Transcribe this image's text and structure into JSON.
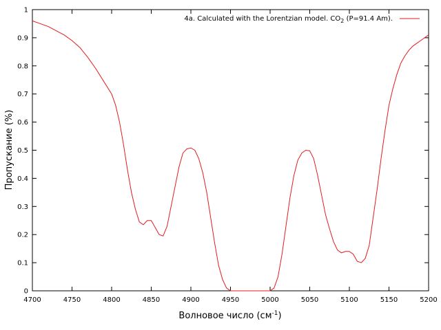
{
  "chart_data": {
    "type": "line",
    "title": "",
    "xlabel": "Волновое число (см",
    "xlabel_sup": "-1",
    "xlabel_suffix": ")",
    "ylabel": "Пропускание (%)",
    "xlim": [
      4700,
      5200
    ],
    "ylim": [
      0,
      1
    ],
    "grid": false,
    "legend_position": "top-right",
    "x_ticks": [
      4700,
      4750,
      4800,
      4850,
      4900,
      4950,
      5000,
      5050,
      5100,
      5150,
      5200
    ],
    "y_ticks": [
      0,
      0.1,
      0.2,
      0.3,
      0.4,
      0.5,
      0.6,
      0.7,
      0.8,
      0.9,
      1
    ],
    "series": [
      {
        "name": "4a. Calculated with the Lorentzian model. CO",
        "name_sub": "2",
        "name_suffix": " (P=91.4 Am).",
        "color": "#e41a1c",
        "x": [
          4700,
          4710,
          4720,
          4730,
          4740,
          4750,
          4760,
          4770,
          4780,
          4790,
          4800,
          4805,
          4810,
          4815,
          4820,
          4825,
          4830,
          4835,
          4840,
          4845,
          4850,
          4855,
          4860,
          4865,
          4870,
          4875,
          4880,
          4885,
          4890,
          4895,
          4900,
          4905,
          4910,
          4915,
          4920,
          4925,
          4930,
          4935,
          4940,
          4945,
          4950,
          4955,
          4960,
          4970,
          4980,
          4990,
          5000,
          5005,
          5010,
          5015,
          5020,
          5025,
          5030,
          5035,
          5040,
          5045,
          5050,
          5055,
          5060,
          5065,
          5070,
          5075,
          5080,
          5085,
          5090,
          5095,
          5100,
          5105,
          5110,
          5115,
          5120,
          5125,
          5130,
          5135,
          5140,
          5145,
          5150,
          5155,
          5160,
          5165,
          5170,
          5175,
          5180,
          5185,
          5190,
          5195,
          5200
        ],
        "y": [
          0.96,
          0.95,
          0.94,
          0.925,
          0.91,
          0.89,
          0.865,
          0.83,
          0.79,
          0.745,
          0.7,
          0.66,
          0.6,
          0.52,
          0.43,
          0.35,
          0.29,
          0.245,
          0.235,
          0.25,
          0.25,
          0.225,
          0.2,
          0.195,
          0.23,
          0.3,
          0.37,
          0.44,
          0.49,
          0.505,
          0.508,
          0.5,
          0.47,
          0.42,
          0.35,
          0.26,
          0.17,
          0.09,
          0.04,
          0.01,
          0,
          0,
          0,
          0,
          0,
          0,
          0,
          0.01,
          0.05,
          0.13,
          0.23,
          0.33,
          0.41,
          0.465,
          0.49,
          0.5,
          0.498,
          0.47,
          0.41,
          0.34,
          0.27,
          0.22,
          0.175,
          0.145,
          0.135,
          0.14,
          0.14,
          0.13,
          0.105,
          0.1,
          0.115,
          0.16,
          0.26,
          0.36,
          0.47,
          0.57,
          0.66,
          0.72,
          0.77,
          0.81,
          0.835,
          0.855,
          0.87,
          0.88,
          0.89,
          0.9,
          0.91
        ]
      }
    ]
  }
}
